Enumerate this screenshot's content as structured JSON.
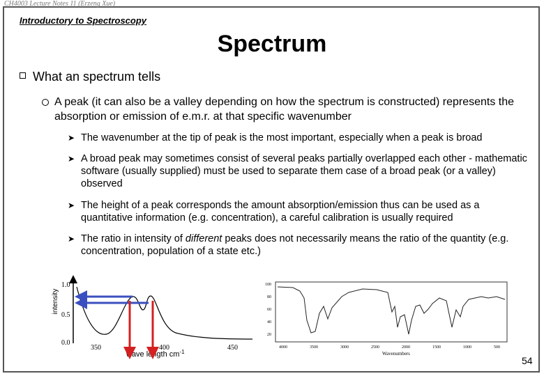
{
  "header": {
    "course": "CH4003 Lecture Notes 11 (Erzeng Xue)",
    "section": "Introductory to Spectroscopy",
    "title": "Spectrum"
  },
  "body": {
    "point": "What an spectrum tells",
    "subpoint": "A peak (it can also be a valley depending on how the spectrum is constructed) represents the absorption or emission of e.m.r. at that specific wavenumber",
    "details": [
      [
        "The wavenumber at the tip of peak is the most important, especially when a peak is broad"
      ],
      [
        "A broad peak may sometimes consist of several peaks partially overlapped each other - mathematic software (usually supplied) must be used to separate them case of a broad peak (or a valley) observed"
      ],
      [
        "The height of a peak corresponds the amount absorption/emission thus can be used as a quantitative information (e.g. concentration), a careful calibration is usually required"
      ],
      [
        "The ratio in intensity of ",
        "different",
        " peaks does not necessarily means the ratio of the quantity (e.g. concentration, population of a state etc.)"
      ]
    ]
  },
  "sketch": {
    "y_label": "intensity",
    "y_ticks": [
      "1.0",
      "0.5",
      "0.0"
    ],
    "x_ticks": [
      "350",
      "400",
      "450"
    ],
    "x_label": "wave length cm",
    "x_label_sup": "-1"
  },
  "ir_spectrum": {
    "y_ticks": [
      "100",
      "80",
      "60",
      "40",
      "20"
    ],
    "x_ticks": [
      "4000",
      "3500",
      "3000",
      "2500",
      "2000",
      "1500",
      "1000",
      "500"
    ],
    "x_label": "Wavenumbers"
  },
  "page_number": "54"
}
